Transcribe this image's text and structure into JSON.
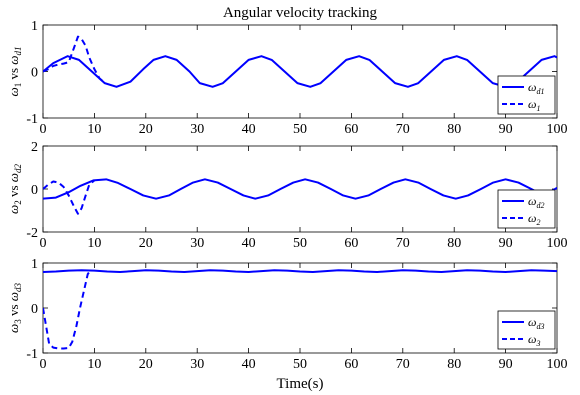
{
  "figure": {
    "title": "Angular velocity tracking",
    "xlabel": "Time(s)"
  },
  "chart_data": [
    {
      "type": "line",
      "ylabel": "ω1 vs ωd1",
      "xlim": [
        0,
        100
      ],
      "ylim": [
        -1,
        1
      ],
      "xticks": [
        0,
        10,
        20,
        30,
        40,
        50,
        60,
        70,
        80,
        90,
        100
      ],
      "yticks": [
        -1,
        0,
        1
      ],
      "grid": false,
      "legend_position": "right",
      "color": "#0000ff",
      "series": [
        {
          "name": "ωd1",
          "style": "solid",
          "x": [
            0,
            2,
            4.8,
            7,
            9.5,
            12,
            14.3,
            17,
            19.5,
            21.5,
            23.8,
            26,
            28.5,
            30.5,
            33,
            35,
            37.5,
            40,
            42.5,
            44.5,
            47,
            49.5,
            52,
            54,
            56.5,
            59,
            61.5,
            63.5,
            66,
            68.5,
            71,
            73,
            75.5,
            78,
            80.5,
            82.5,
            85,
            87.5,
            90,
            92,
            94.5,
            97,
            99.5,
            100
          ],
          "values": [
            0,
            0.18,
            0.33,
            0.25,
            0,
            -0.25,
            -0.33,
            -0.22,
            0.05,
            0.25,
            0.33,
            0.25,
            0,
            -0.25,
            -0.33,
            -0.25,
            0,
            0.25,
            0.33,
            0.25,
            0,
            -0.25,
            -0.33,
            -0.25,
            0,
            0.25,
            0.33,
            0.25,
            0,
            -0.25,
            -0.33,
            -0.25,
            0,
            0.25,
            0.33,
            0.25,
            0,
            -0.25,
            -0.33,
            -0.25,
            0,
            0.25,
            0.33,
            0.3
          ]
        },
        {
          "name": "ω1",
          "style": "dashed",
          "x": [
            0,
            1,
            2,
            3,
            4,
            5,
            6,
            6.8,
            7.5,
            8.3,
            9,
            10,
            11,
            12
          ],
          "values": [
            0,
            0.05,
            0.12,
            0.15,
            0.17,
            0.2,
            0.5,
            0.75,
            0.7,
            0.55,
            0.3,
            0.05,
            -0.15,
            -0.24
          ]
        }
      ]
    },
    {
      "type": "line",
      "ylabel": "ω2 vs ωd2",
      "xlim": [
        0,
        100
      ],
      "ylim": [
        -2,
        2
      ],
      "xticks": [
        0,
        10,
        20,
        30,
        40,
        50,
        60,
        70,
        80,
        90,
        100
      ],
      "yticks": [
        -2,
        0,
        2
      ],
      "grid": false,
      "legend_position": "right",
      "color": "#0000ff",
      "series": [
        {
          "name": "ωd2",
          "style": "solid",
          "x": [
            0,
            2.5,
            5,
            7.3,
            9.8,
            12.3,
            14.6,
            17,
            19.5,
            22,
            24.5,
            26.8,
            29.2,
            31.5,
            34,
            36.5,
            39,
            41.3,
            43.8,
            46.2,
            48.7,
            51,
            53.5,
            56,
            58.4,
            60.8,
            63.3,
            65.7,
            68.2,
            70.5,
            73,
            75.4,
            77.9,
            80.3,
            82.7,
            85.2,
            87.6,
            90,
            92.5,
            95,
            97.4,
            100
          ],
          "values": [
            -0.45,
            -0.4,
            -0.15,
            0.15,
            0.4,
            0.45,
            0.28,
            0,
            -0.3,
            -0.45,
            -0.3,
            0,
            0.3,
            0.45,
            0.3,
            0,
            -0.3,
            -0.45,
            -0.3,
            0,
            0.3,
            0.45,
            0.3,
            0,
            -0.3,
            -0.45,
            -0.3,
            0,
            0.3,
            0.45,
            0.3,
            0,
            -0.3,
            -0.45,
            -0.3,
            0,
            0.3,
            0.45,
            0.3,
            0,
            -0.3,
            0.05
          ]
        },
        {
          "name": "ω2",
          "style": "dashed",
          "x": [
            0,
            1,
            2,
            3,
            4,
            5,
            6,
            6.8,
            7.5,
            8.3,
            9,
            10
          ],
          "values": [
            0,
            0.2,
            0.35,
            0.3,
            0.1,
            -0.3,
            -0.8,
            -1.15,
            -0.9,
            -0.3,
            0.2,
            0.4
          ]
        }
      ]
    },
    {
      "type": "line",
      "ylabel": "ω3 vs ωd3",
      "xlim": [
        0,
        100
      ],
      "ylim": [
        -1,
        1
      ],
      "xticks": [
        0,
        10,
        20,
        30,
        40,
        50,
        60,
        70,
        80,
        90,
        100
      ],
      "yticks": [
        -1,
        0,
        1
      ],
      "grid": false,
      "legend_position": "right",
      "color": "#0000ff",
      "series": [
        {
          "name": "ωd3",
          "style": "solid",
          "x": [
            0,
            2.5,
            5,
            7.5,
            10,
            12.5,
            15,
            17.5,
            20,
            22.5,
            25,
            27.5,
            30,
            32.5,
            35,
            37.5,
            40,
            42.5,
            45,
            47.5,
            50,
            52.5,
            55,
            57.5,
            60,
            62.5,
            65,
            67.5,
            70,
            72.5,
            75,
            77.5,
            80,
            82.5,
            85,
            87.5,
            90,
            92.5,
            95,
            97.5,
            100
          ],
          "values": [
            0.8,
            0.81,
            0.83,
            0.84,
            0.83,
            0.81,
            0.8,
            0.82,
            0.84,
            0.83,
            0.81,
            0.8,
            0.82,
            0.84,
            0.83,
            0.81,
            0.8,
            0.82,
            0.84,
            0.83,
            0.81,
            0.8,
            0.82,
            0.84,
            0.83,
            0.81,
            0.8,
            0.82,
            0.84,
            0.83,
            0.81,
            0.8,
            0.82,
            0.84,
            0.83,
            0.81,
            0.8,
            0.82,
            0.84,
            0.83,
            0.82
          ]
        },
        {
          "name": "ω3",
          "style": "dashed",
          "x": [
            0,
            0.6,
            1.2,
            2,
            3,
            4,
            5,
            5.7,
            6.5,
            7.2,
            8,
            8.7,
            9.3
          ],
          "values": [
            0,
            -0.4,
            -0.8,
            -0.88,
            -0.9,
            -0.9,
            -0.89,
            -0.75,
            -0.4,
            0,
            0.4,
            0.75,
            0.85
          ]
        }
      ]
    }
  ]
}
